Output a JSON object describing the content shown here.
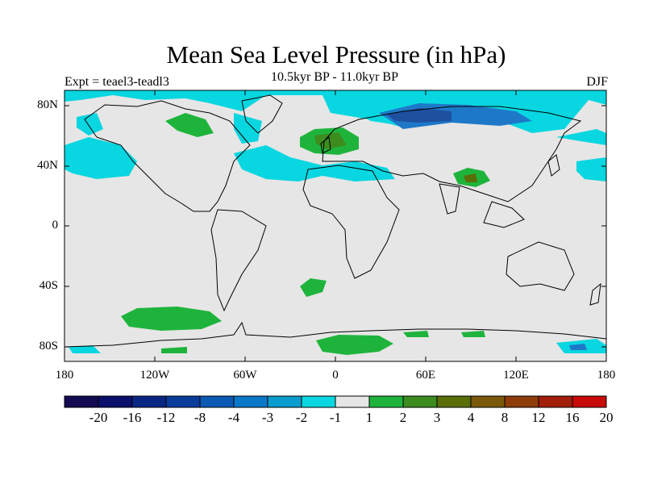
{
  "title": "Mean Sea Level Pressure (in hPa)",
  "left_label": "Expt = teael3-teadl3",
  "center_label": "10.5kyr BP - 11.0kyr BP",
  "right_label": "DJF",
  "lat_ticks": [
    "80N",
    "40N",
    "0",
    "40S",
    "80S"
  ],
  "lon_ticks": [
    "180",
    "120W",
    "60W",
    "0",
    "60E",
    "120E",
    "180"
  ],
  "colorbar": {
    "labels": [
      "-20",
      "-16",
      "-12",
      "-8",
      "-4",
      "-3",
      "-2",
      "-1",
      "1",
      "2",
      "3",
      "4",
      "8",
      "12",
      "16",
      "20"
    ],
    "colors": [
      "#130b52",
      "#0a0f6b",
      "#0a2683",
      "#0a3c9b",
      "#0a5ab4",
      "#0a78c8",
      "#0a9ccd",
      "#08d6e0",
      "#e6e6e6",
      "#1eb43c",
      "#3c8c1e",
      "#5a6e0a",
      "#7a5a0a",
      "#8e3c0a",
      "#a01e0a",
      "#c80a0a"
    ]
  },
  "colors": {
    "background": "#e6e6e6",
    "cyan": "#08d6e0",
    "blue": "#1e78c8",
    "dark_blue": "#1e50a0",
    "green": "#1eb43c",
    "dark_green": "#3c8c1e",
    "brown": "#5a6e0a"
  }
}
